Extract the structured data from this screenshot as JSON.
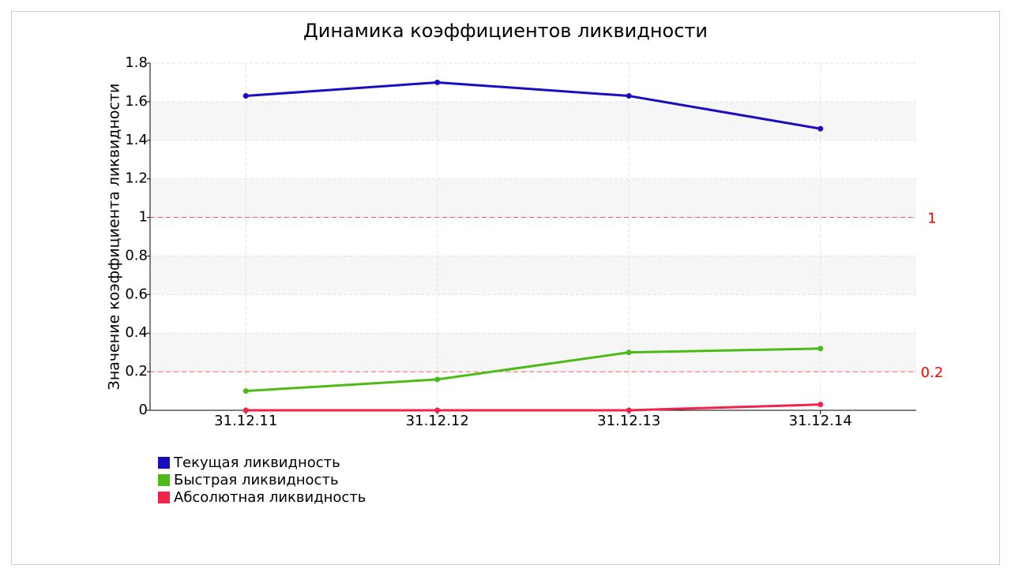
{
  "chart_data": {
    "type": "line",
    "title": "Динамика коэффициентов ликвидности",
    "y_label": "Значение коэффициента ликвидности",
    "categories": [
      "31.12.11",
      "31.12.12",
      "31.12.13",
      "31.12.14"
    ],
    "series": [
      {
        "name": "Текущая ликвидность",
        "color": "#1a0dbf",
        "values": [
          1.63,
          1.7,
          1.63,
          1.46
        ]
      },
      {
        "name": "Быстрая ликвидность",
        "color": "#4cbb17",
        "values": [
          0.1,
          0.16,
          0.3,
          0.32
        ]
      },
      {
        "name": "Абсолютная ликвидность",
        "color": "#f0244a",
        "values": [
          0.0,
          0.0,
          0.0,
          0.03
        ]
      }
    ],
    "ylim": [
      0,
      1.8
    ],
    "yticks": [
      0,
      0.2,
      0.4,
      0.6,
      0.8,
      1,
      1.2,
      1.4,
      1.6,
      1.8
    ],
    "grid": true,
    "alternating_bands": true,
    "reference_lines": [
      1,
      0.2
    ],
    "reference_color": "#ff0000",
    "legend": "bottom-left"
  }
}
